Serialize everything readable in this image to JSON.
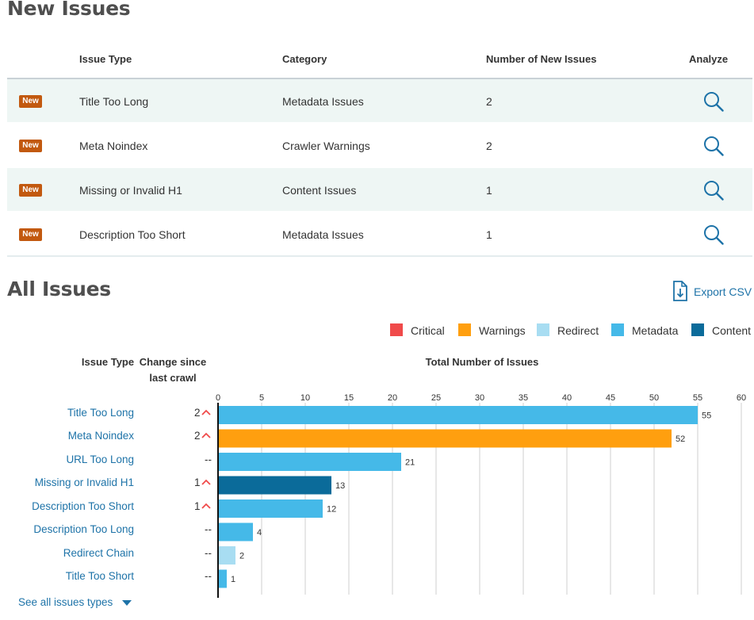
{
  "new_issues": {
    "title": "New Issues",
    "headers": {
      "issue_type": "Issue Type",
      "category": "Category",
      "count": "Number of New Issues",
      "analyze": "Analyze"
    },
    "badge": "New",
    "rows": [
      {
        "issue_type": "Title Too Long",
        "category": "Metadata Issues",
        "count": "2"
      },
      {
        "issue_type": "Meta Noindex",
        "category": "Crawler Warnings",
        "count": "2"
      },
      {
        "issue_type": "Missing or Invalid H1",
        "category": "Content Issues",
        "count": "1"
      },
      {
        "issue_type": "Description Too Short",
        "category": "Metadata Issues",
        "count": "1"
      }
    ]
  },
  "all_issues": {
    "title": "All Issues",
    "export_label": "Export CSV",
    "legend": [
      {
        "label": "Critical",
        "color": "#f04a4a"
      },
      {
        "label": "Warnings",
        "color": "#ff9f0f"
      },
      {
        "label": "Redirect",
        "color": "#a8ddf2"
      },
      {
        "label": "Metadata",
        "color": "#45b9e8"
      },
      {
        "label": "Content",
        "color": "#0b6b9a"
      }
    ],
    "col_headers": {
      "issue_type": "Issue Type",
      "change_line1": "Change since",
      "change_line2": "last crawl",
      "total": "Total Number of Issues"
    },
    "rows": [
      {
        "issue_type": "Title Too Long",
        "change": "2",
        "up": true
      },
      {
        "issue_type": "Meta Noindex",
        "change": "2",
        "up": true
      },
      {
        "issue_type": "URL Too Long",
        "change": "--",
        "up": false
      },
      {
        "issue_type": "Missing or Invalid H1",
        "change": "1",
        "up": true
      },
      {
        "issue_type": "Description Too Short",
        "change": "1",
        "up": true
      },
      {
        "issue_type": "Description Too Long",
        "change": "--",
        "up": false
      },
      {
        "issue_type": "Redirect Chain",
        "change": "--",
        "up": false
      },
      {
        "issue_type": "Title Too Short",
        "change": "--",
        "up": false
      }
    ],
    "see_all_label": "See all issues types"
  },
  "chart_data": {
    "type": "bar",
    "orientation": "horizontal",
    "title": "Total Number of Issues",
    "categories": [
      "Title Too Long",
      "Meta Noindex",
      "URL Too Long",
      "Missing or Invalid H1",
      "Description Too Short",
      "Description Too Long",
      "Redirect Chain",
      "Title Too Short"
    ],
    "values": [
      55,
      52,
      21,
      13,
      12,
      4,
      2,
      1
    ],
    "series_type": [
      "Metadata",
      "Warnings",
      "Metadata",
      "Content",
      "Metadata",
      "Metadata",
      "Redirect",
      "Metadata"
    ],
    "xlim": [
      0,
      60
    ],
    "ticks": [
      0,
      5,
      10,
      15,
      20,
      25,
      30,
      35,
      40,
      45,
      50,
      55,
      60
    ],
    "grid": true,
    "colors": {
      "Critical": "#f04a4a",
      "Warnings": "#ff9f0f",
      "Redirect": "#a8ddf2",
      "Metadata": "#45b9e8",
      "Content": "#0b6b9a"
    }
  }
}
